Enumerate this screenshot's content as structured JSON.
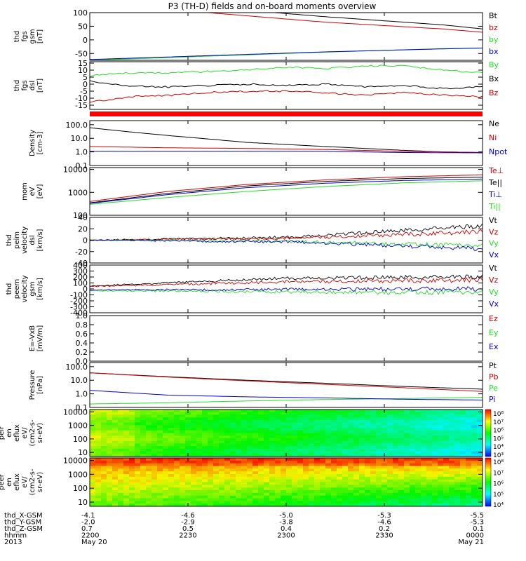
{
  "title": "P3 (TH-D) fields and on-board moments overview",
  "colors": {
    "black": "#000000",
    "red": "#cc0000",
    "green": "#22dd22",
    "blue": "#0000cc",
    "flag": "#ff0000"
  },
  "chart_data": [
    {
      "type": "line",
      "name": "fgs_gsm",
      "ylabel": [
        "thd",
        "fgs",
        "gsm",
        "[nT]"
      ],
      "ylim": [
        -75,
        100
      ],
      "yticks": [
        "100",
        "50",
        "0",
        "-50"
      ],
      "ytick_vals": [
        100,
        50,
        0,
        -50
      ],
      "series": [
        {
          "name": "Bt",
          "color": "black",
          "x": [
            0,
            0.3,
            0.6,
            0.9,
            1
          ],
          "values": [
            160,
            120,
            85,
            55,
            40
          ]
        },
        {
          "name": "bz",
          "color": "red",
          "x": [
            0.3,
            0.6,
            0.9,
            1
          ],
          "values": [
            100,
            65,
            40,
            28
          ]
        },
        {
          "name": "by",
          "color": "green",
          "x": [
            0,
            0.3,
            0.6,
            0.9,
            1
          ],
          "values": [
            -75,
            -60,
            -45,
            -32,
            -30
          ]
        },
        {
          "name": "bx",
          "color": "blue",
          "x": [
            0,
            0.3,
            0.6,
            0.9,
            1
          ],
          "values": [
            -72,
            -58,
            -44,
            -33,
            -30
          ]
        }
      ]
    },
    {
      "type": "line",
      "name": "fgs_dsl",
      "ylabel": [
        "thd",
        "fgs",
        "dsl",
        "[nT]"
      ],
      "ylim": [
        -18,
        16
      ],
      "yticks": [
        "15",
        "10",
        "5",
        "0",
        "-5",
        "-10",
        "-15"
      ],
      "ytick_vals": [
        15,
        10,
        5,
        0,
        -5,
        -10,
        -15
      ],
      "series": [
        {
          "name": "By",
          "color": "green",
          "x": [
            0,
            0.1,
            0.2,
            0.3,
            0.4,
            0.5,
            0.6,
            0.7,
            0.8,
            0.9,
            1
          ],
          "values": [
            6,
            8,
            8,
            9,
            10,
            12,
            11,
            13,
            13,
            10,
            8
          ]
        },
        {
          "name": "Bx",
          "color": "black",
          "x": [
            0,
            0.1,
            0.2,
            0.3,
            0.4,
            0.5,
            0.6,
            0.7,
            0.8,
            0.9,
            1
          ],
          "values": [
            2,
            -1,
            -2,
            -1,
            0,
            -1,
            0,
            -2,
            -1,
            -3,
            -2
          ]
        },
        {
          "name": "Bz",
          "color": "red",
          "x": [
            0,
            0.1,
            0.2,
            0.3,
            0.4,
            0.5,
            0.6,
            0.7,
            0.8,
            0.9,
            1
          ],
          "values": [
            -13,
            -9,
            -8,
            -6,
            -5,
            -5,
            -6,
            -8,
            -6,
            -8,
            -9
          ]
        }
      ]
    },
    {
      "type": "line",
      "name": "density",
      "ylabel": [
        "Density",
        "[cm-3]"
      ],
      "scale": "log",
      "ylim": [
        0.1,
        200
      ],
      "yticks": [
        "100.0",
        "10.0",
        "1.0",
        "0.1"
      ],
      "ytick_vals": [
        100,
        10,
        1,
        0.1
      ],
      "series": [
        {
          "name": "Ne",
          "color": "black",
          "x": [
            0,
            0.1,
            0.2,
            0.3,
            0.4,
            0.5,
            0.6,
            0.7,
            0.8,
            0.9,
            1
          ],
          "values": [
            60,
            30,
            16,
            9,
            5,
            3.5,
            2.5,
            1.8,
            1.3,
            1.0,
            0.9
          ]
        },
        {
          "name": "Ni",
          "color": "red",
          "x": [
            0,
            0.2,
            0.4,
            0.6,
            0.8,
            1
          ],
          "values": [
            2.5,
            2.0,
            1.8,
            1.5,
            1.1,
            0.9
          ]
        },
        {
          "name": "Npot",
          "color": "blue",
          "x": [
            0,
            0.2,
            0.4,
            0.6,
            0.8,
            1
          ],
          "values": [
            1.1,
            1.1,
            1.1,
            1.1,
            0.9,
            0.85
          ]
        }
      ]
    },
    {
      "type": "line",
      "name": "temperature",
      "ylabel": [
        "mom",
        "eV",
        "[eV]"
      ],
      "scale": "log",
      "ylim": [
        100,
        12000
      ],
      "yticks": [
        "10000",
        "1000",
        "100"
      ],
      "ytick_vals": [
        10000,
        1000,
        100
      ],
      "series": [
        {
          "name": "Te⊥",
          "color": "red",
          "x": [
            0,
            0.2,
            0.4,
            0.6,
            0.8,
            1
          ],
          "values": [
            400,
            1100,
            2200,
            3500,
            4800,
            5800
          ]
        },
        {
          "name": "Te||",
          "color": "black",
          "x": [
            0,
            0.2,
            0.4,
            0.6,
            0.8,
            1
          ],
          "values": [
            350,
            900,
            1900,
            3000,
            4000,
            4600
          ]
        },
        {
          "name": "Ti⊥",
          "color": "blue",
          "x": [
            0,
            0.2,
            0.4,
            0.6,
            0.8,
            1
          ],
          "values": [
            330,
            800,
            1600,
            2500,
            3300,
            3800
          ]
        },
        {
          "name": "Ti||",
          "color": "green",
          "x": [
            0,
            0.2,
            0.4,
            0.6,
            0.8,
            1
          ],
          "values": [
            300,
            600,
            1100,
            1800,
            2600,
            3200
          ]
        }
      ]
    },
    {
      "type": "line",
      "name": "velocity_dsl",
      "ylabel": [
        "thd",
        "peim",
        "velocity",
        "dsl",
        "[km/s]"
      ],
      "ylim": [
        -40,
        40
      ],
      "yticks": [
        "40",
        "20",
        "0",
        "-20",
        "-40"
      ],
      "ytick_vals": [
        40,
        20,
        0,
        -20,
        -40
      ],
      "series": [
        {
          "name": "Vt",
          "color": "black",
          "x": [
            0,
            0.5,
            1
          ],
          "values": [
            0,
            5,
            25
          ]
        },
        {
          "name": "Vz",
          "color": "red",
          "x": [
            0,
            0.5,
            1
          ],
          "values": [
            0,
            3,
            15
          ]
        },
        {
          "name": "Vy",
          "color": "green",
          "x": [
            0,
            0.5,
            1
          ],
          "values": [
            0,
            -2,
            -10
          ]
        },
        {
          "name": "Vx",
          "color": "blue",
          "x": [
            0,
            0.5,
            1
          ],
          "values": [
            0,
            -3,
            -15
          ]
        }
      ]
    },
    {
      "type": "line",
      "name": "velocity_gsm",
      "ylabel": [
        "thd",
        "peem",
        "velocity",
        "gsm",
        "[km/s]"
      ],
      "ylim": [
        -400,
        400
      ],
      "yticks": [
        "400",
        "300",
        "200",
        "100",
        "0",
        "-100",
        "-200",
        "-300",
        "-400"
      ],
      "ytick_vals": [
        400,
        300,
        200,
        100,
        0,
        -100,
        -200,
        -300,
        -400
      ],
      "series": [
        {
          "name": "Vt",
          "color": "black",
          "x": [
            0,
            0.5,
            1
          ],
          "values": [
            50,
            180,
            200
          ]
        },
        {
          "name": "Vz",
          "color": "red",
          "x": [
            0,
            0.5,
            1
          ],
          "values": [
            40,
            120,
            150
          ]
        },
        {
          "name": "Vy",
          "color": "green",
          "x": [
            0,
            0.5,
            1
          ],
          "values": [
            -30,
            -50,
            -60
          ]
        },
        {
          "name": "Vx",
          "color": "blue",
          "x": [
            0,
            0.5,
            1
          ],
          "values": [
            -20,
            -10,
            0
          ]
        }
      ]
    },
    {
      "type": "line",
      "name": "efield",
      "ylabel": [
        "E=-VxB",
        "[mV/m]"
      ],
      "ylim": [
        0,
        1
      ],
      "yticks": [
        "1.0",
        "0.8",
        "0.6",
        "0.4",
        "0.2",
        "0.0"
      ],
      "ytick_vals": [
        1,
        0.8,
        0.6,
        0.4,
        0.2,
        0
      ],
      "series": [
        {
          "name": "Ez",
          "color": "red",
          "x": [],
          "values": []
        },
        {
          "name": "Ey",
          "color": "green",
          "x": [],
          "values": []
        },
        {
          "name": "Ex",
          "color": "blue",
          "x": [],
          "values": []
        }
      ]
    },
    {
      "type": "line",
      "name": "pressure",
      "ylabel": [
        "Pressure",
        "[nPa]"
      ],
      "scale": "log",
      "ylim": [
        0.1,
        200
      ],
      "yticks": [
        "100.0",
        "10.0",
        "1.0",
        "0.1"
      ],
      "ytick_vals": [
        100,
        10,
        1,
        0.1
      ],
      "series": [
        {
          "name": "Pt",
          "color": "black",
          "x": [
            0,
            0.2,
            0.4,
            0.6,
            0.8,
            1
          ],
          "values": [
            35,
            18,
            10,
            6,
            3.5,
            2.2
          ]
        },
        {
          "name": "Pb",
          "color": "red",
          "x": [
            0,
            0.2,
            0.4,
            0.6,
            0.8,
            1
          ],
          "values": [
            35,
            17,
            9,
            5,
            2.8,
            1.5
          ]
        },
        {
          "name": "Pe",
          "color": "green",
          "x": [
            0,
            0.2,
            0.4,
            0.6,
            0.8,
            1
          ],
          "values": [
            0.18,
            0.22,
            0.3,
            0.38,
            0.45,
            0.55
          ]
        },
        {
          "name": "Pi",
          "color": "blue",
          "x": [
            0,
            0.2,
            0.4,
            0.6,
            0.8,
            1
          ],
          "values": [
            1.8,
            0.8,
            0.6,
            0.5,
            0.4,
            0.35
          ]
        }
      ]
    },
    {
      "type": "heatmap",
      "name": "peir_en_eflux",
      "ylabel": [
        "thd",
        "peir",
        "en",
        "eflux",
        "eV/",
        "(cm2-s-",
        "sr-eV)"
      ],
      "yticks": [
        "10000",
        "1000",
        "100",
        "10"
      ],
      "ytick_vals": [
        10000,
        1000,
        100,
        10
      ],
      "colorbar": [
        "10⁸",
        "10⁷",
        "10⁶",
        "10⁵",
        "10⁴",
        "10³"
      ]
    },
    {
      "type": "heatmap",
      "name": "peer_en_eflux",
      "ylabel": [
        "thd",
        "peer",
        "en",
        "eflux",
        "eV/",
        "(cm2-s-",
        "sr-eV)"
      ],
      "yticks": [
        "10000",
        "1000",
        "100",
        "10"
      ],
      "ytick_vals": [
        10000,
        1000,
        100,
        10
      ],
      "colorbar": [
        "10⁸",
        "10⁷",
        "10⁶",
        "10⁵",
        "10⁴"
      ]
    }
  ],
  "xaxis": {
    "rows": [
      {
        "label": "thd_X-GSM",
        "values": [
          "-4.1",
          "-4.6",
          "-5.0",
          "-5.3",
          "-5.5"
        ]
      },
      {
        "label": "thd_Y-GSM",
        "values": [
          "-2.0",
          "-2.9",
          "-3.8",
          "-4.6",
          "-5.3"
        ]
      },
      {
        "label": "thd_Z-GSM",
        "values": [
          "0.7",
          "0.5",
          "0.4",
          "0.2",
          "0.1"
        ]
      },
      {
        "label": "hhmm",
        "values": [
          "2200",
          "2230",
          "2300",
          "2330",
          "0000"
        ]
      },
      {
        "label": "2013",
        "values": [
          "May 20",
          "",
          "",
          "",
          "May 21"
        ]
      }
    ]
  }
}
